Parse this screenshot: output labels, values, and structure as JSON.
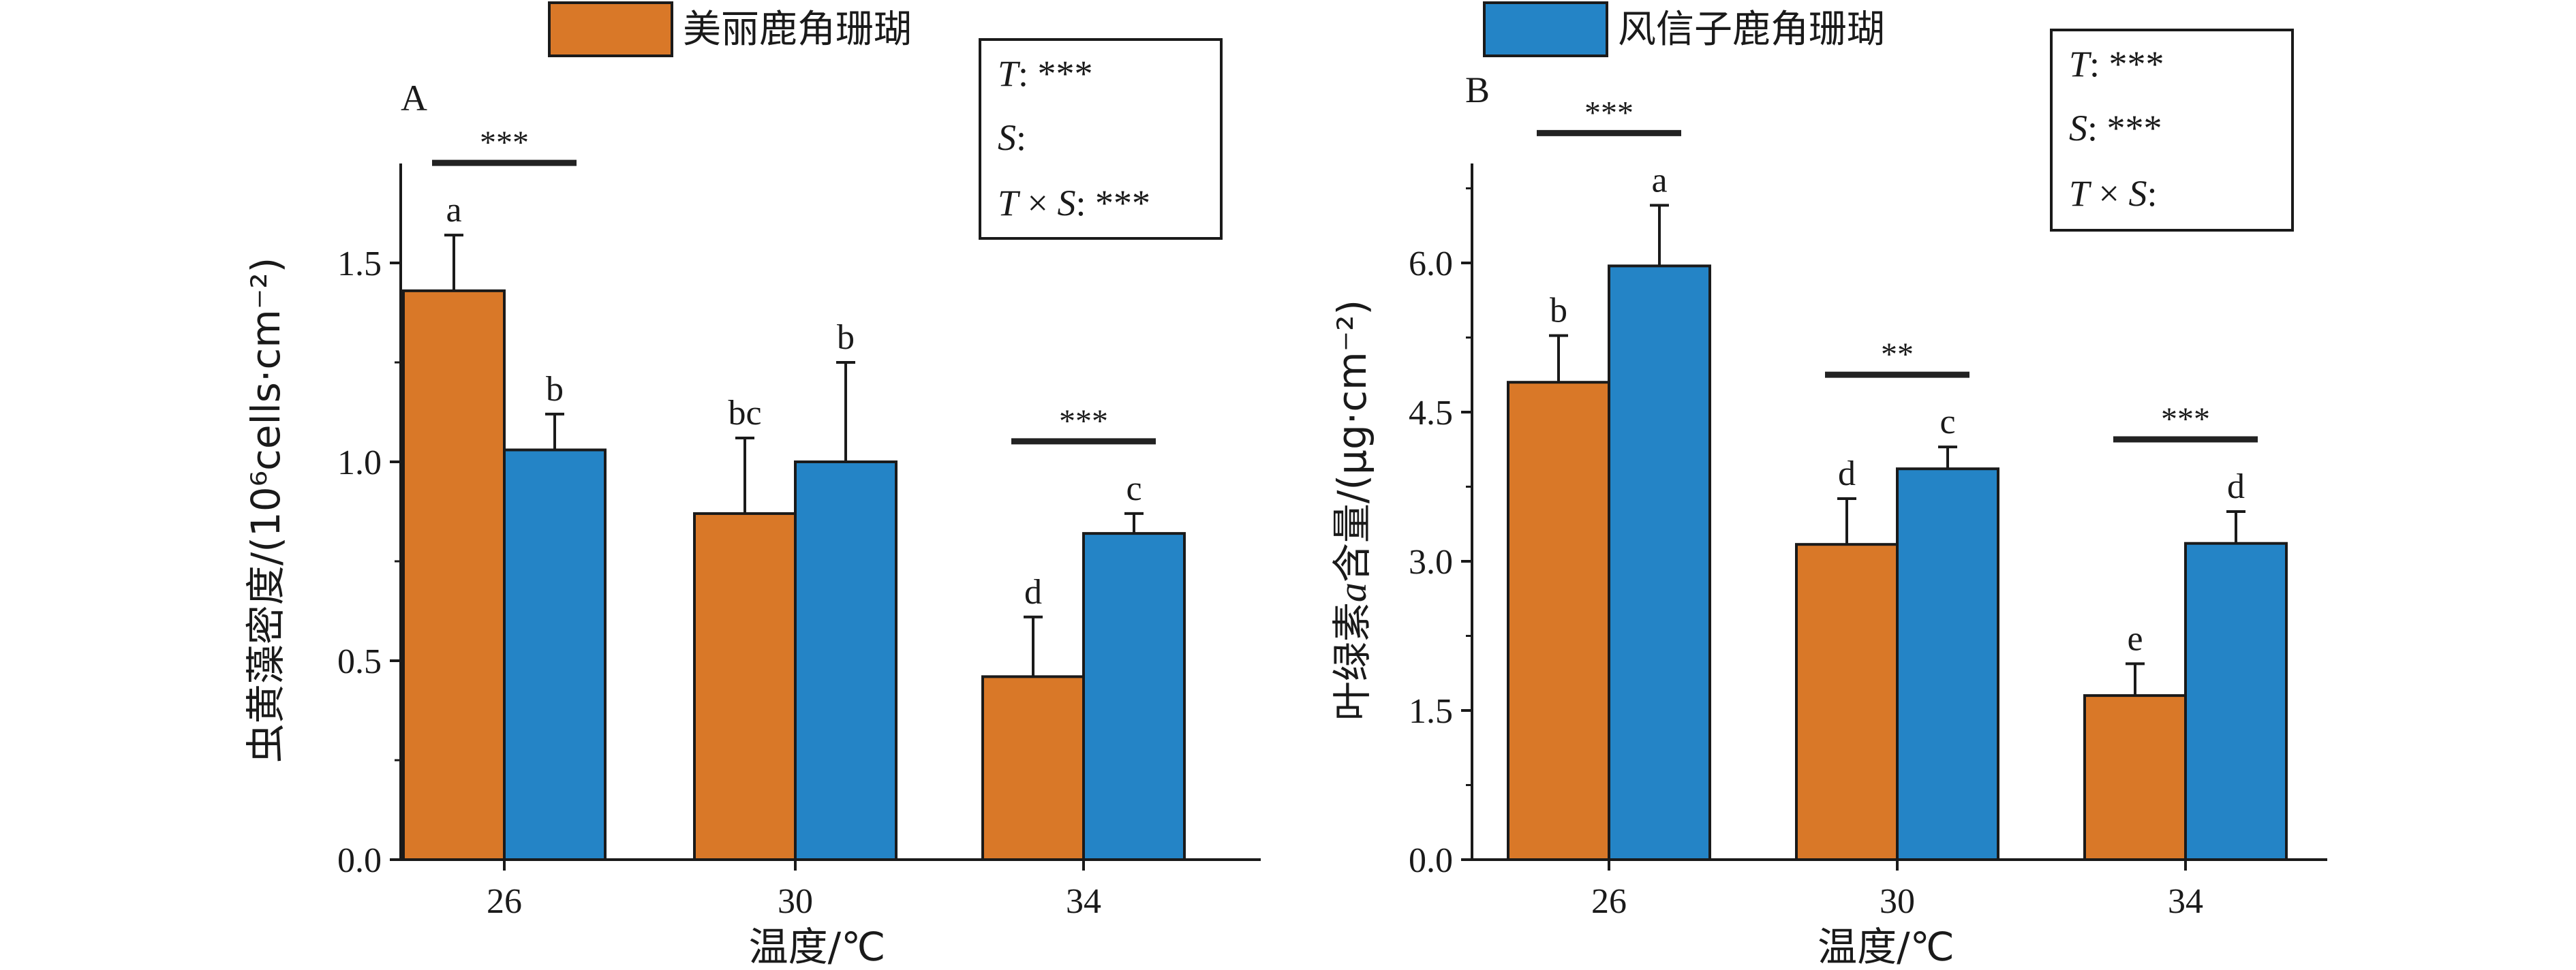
{
  "legend": [
    {
      "label": "美丽鹿角珊瑚",
      "color": "#D97828"
    },
    {
      "label": "风信子鹿角珊瑚",
      "color": "#2484C6"
    }
  ],
  "chart_data": [
    {
      "type": "bar",
      "panel_label": "A",
      "categories": [
        "26",
        "30",
        "34"
      ],
      "xlabel": "温度/℃",
      "ylabel": "虫黄藻密度/(10⁶cells·cm⁻²)",
      "ylim": [
        0,
        1.75
      ],
      "yticks": [
        0.0,
        0.5,
        1.0,
        1.5
      ],
      "ytick_labels": [
        "0.0",
        "0.5",
        "1.0",
        "1.5"
      ],
      "series": [
        {
          "name": "美丽鹿角珊瑚",
          "values": [
            1.43,
            0.87,
            0.46
          ],
          "errors": [
            0.14,
            0.19,
            0.15
          ],
          "letters": [
            "a",
            "bc",
            "d"
          ]
        },
        {
          "name": "风信子鹿角珊瑚",
          "values": [
            1.03,
            1.0,
            0.82
          ],
          "errors": [
            0.09,
            0.25,
            0.05
          ],
          "letters": [
            "b",
            "b",
            "c"
          ]
        }
      ],
      "significance": [
        {
          "category_index": 0,
          "text": "***"
        },
        {
          "category_index": 2,
          "text": "***"
        }
      ],
      "stats": [
        {
          "factor": "T",
          "value": "***"
        },
        {
          "factor": "S",
          "value": ""
        },
        {
          "factor": "T × S",
          "value": "***"
        }
      ]
    },
    {
      "type": "bar",
      "panel_label": "B",
      "categories": [
        "26",
        "30",
        "34"
      ],
      "xlabel": "温度/℃",
      "ylabel_prefix": "叶绿素",
      "ylabel_italic": "a",
      "ylabel_suffix": "含量/(μg·cm⁻²)",
      "ylim": [
        0,
        7.0
      ],
      "yticks": [
        0.0,
        1.5,
        3.0,
        4.5,
        6.0
      ],
      "ytick_labels": [
        "0.0",
        "1.5",
        "3.0",
        "4.5",
        "6.0"
      ],
      "series": [
        {
          "name": "美丽鹿角珊瑚",
          "values": [
            4.8,
            3.17,
            1.65
          ],
          "errors": [
            0.47,
            0.46,
            0.32
          ],
          "letters": [
            "b",
            "d",
            "e"
          ]
        },
        {
          "name": "风信子鹿角珊瑚",
          "values": [
            5.97,
            3.93,
            3.18
          ],
          "errors": [
            0.61,
            0.22,
            0.32
          ],
          "letters": [
            "a",
            "c",
            "d"
          ]
        }
      ],
      "significance": [
        {
          "category_index": 0,
          "text": "***"
        },
        {
          "category_index": 1,
          "text": "**"
        },
        {
          "category_index": 2,
          "text": "***"
        }
      ],
      "stats": [
        {
          "factor": "T",
          "value": "***"
        },
        {
          "factor": "S",
          "value": "***"
        },
        {
          "factor": "T × S",
          "value": ""
        }
      ]
    }
  ]
}
